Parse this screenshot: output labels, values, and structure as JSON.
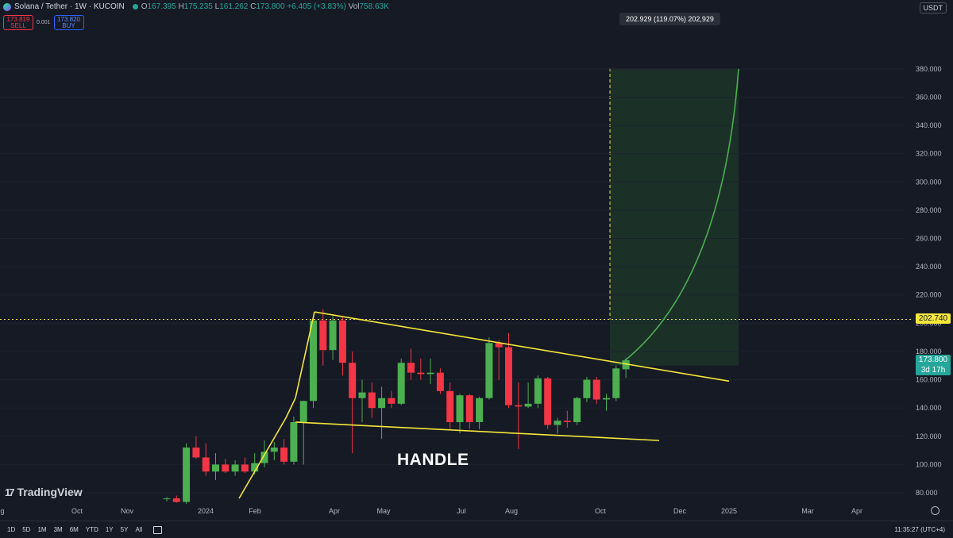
{
  "header": {
    "symbol": "Solana / Tether · 1W · KUCOIN",
    "open_label": "O",
    "open": "167.395",
    "high_label": "H",
    "high": "175.235",
    "low_label": "L",
    "low": "161.262",
    "close_label": "C",
    "close": "173.800",
    "change": "+6.405 (+3.83%)",
    "vol_label": "Vol",
    "volume": "758.63K"
  },
  "trade": {
    "sell_price": "173.819",
    "sell_label": "SELL",
    "spread": "0.001",
    "buy_price": "173.820",
    "buy_label": "BUY"
  },
  "currency": "USDT",
  "measure_label": "202.929 (119.07%) 202,929",
  "annotation_text": "HANDLE",
  "logo_text": "TradingView",
  "price_tags": {
    "level": "202.740",
    "last_price": "173.800",
    "countdown": "3d 17h"
  },
  "bottom_bar": {
    "ranges": [
      "1D",
      "5D",
      "1M",
      "3M",
      "6M",
      "YTD",
      "1Y",
      "5Y",
      "All"
    ],
    "clock": "11:35:27 (UTC+4)"
  },
  "colors": {
    "background": "#161a25",
    "up": "#4caf50",
    "down": "#f23645",
    "trendline": "#f5e63a",
    "projection": "#4caf50",
    "target_zone": "#1e3a2a"
  },
  "chart_data": {
    "type": "candlestick",
    "x_axis": {
      "labels": [
        "g",
        "Oct",
        "Nov",
        "2024",
        "Feb",
        "Apr",
        "May",
        "Jul",
        "Aug",
        "Oct",
        "Dec",
        "2025",
        "Mar",
        "Apr"
      ]
    },
    "y_axis": {
      "ticks": [
        80,
        100,
        120,
        140,
        160,
        180,
        200,
        220,
        240,
        260,
        280,
        300,
        320,
        340,
        360,
        380
      ],
      "tick_labels": [
        "80.000",
        "100.000",
        "120.000",
        "140.000",
        "160.000",
        "180.000",
        "200.000",
        "220.000",
        "240.000",
        "260.000",
        "280.000",
        "300.000",
        "320.000",
        "340.000",
        "360.000",
        "380.000"
      ],
      "range": [
        72,
        392
      ],
      "position": "right"
    },
    "candles": [
      {
        "o": 75.5,
        "h": 77,
        "l": 74,
        "c": 76
      },
      {
        "o": 76,
        "h": 78,
        "l": 73,
        "c": 73.5
      },
      {
        "o": 73.5,
        "h": 115,
        "l": 72,
        "c": 112
      },
      {
        "o": 112,
        "h": 120,
        "l": 104,
        "c": 105
      },
      {
        "o": 105,
        "h": 115,
        "l": 92,
        "c": 95
      },
      {
        "o": 95,
        "h": 108,
        "l": 89,
        "c": 100
      },
      {
        "o": 100,
        "h": 104,
        "l": 94,
        "c": 95
      },
      {
        "o": 95,
        "h": 103,
        "l": 92,
        "c": 100
      },
      {
        "o": 100,
        "h": 105,
        "l": 94,
        "c": 95
      },
      {
        "o": 95,
        "h": 108,
        "l": 93,
        "c": 101
      },
      {
        "o": 101,
        "h": 117,
        "l": 98,
        "c": 109
      },
      {
        "o": 109,
        "h": 116,
        "l": 103,
        "c": 112
      },
      {
        "o": 112,
        "h": 118,
        "l": 100,
        "c": 102
      },
      {
        "o": 102,
        "h": 134,
        "l": 100,
        "c": 130
      },
      {
        "o": 130,
        "h": 145,
        "l": 100,
        "c": 145
      },
      {
        "o": 145,
        "h": 205,
        "l": 140,
        "c": 202
      },
      {
        "o": 202,
        "h": 210,
        "l": 170,
        "c": 181
      },
      {
        "o": 181,
        "h": 205,
        "l": 174,
        "c": 202
      },
      {
        "o": 202,
        "h": 204,
        "l": 163,
        "c": 172
      },
      {
        "o": 172,
        "h": 180,
        "l": 108,
        "c": 147
      },
      {
        "o": 147,
        "h": 160,
        "l": 130,
        "c": 151
      },
      {
        "o": 151,
        "h": 158,
        "l": 133,
        "c": 140
      },
      {
        "o": 140,
        "h": 155,
        "l": 118,
        "c": 147
      },
      {
        "o": 147,
        "h": 152,
        "l": 140,
        "c": 143
      },
      {
        "o": 143,
        "h": 175,
        "l": 142,
        "c": 172
      },
      {
        "o": 172,
        "h": 182,
        "l": 160,
        "c": 165
      },
      {
        "o": 165,
        "h": 175,
        "l": 160,
        "c": 164
      },
      {
        "o": 164,
        "h": 175,
        "l": 157,
        "c": 165
      },
      {
        "o": 165,
        "h": 168,
        "l": 150,
        "c": 152
      },
      {
        "o": 152,
        "h": 158,
        "l": 125,
        "c": 130
      },
      {
        "o": 130,
        "h": 150,
        "l": 122,
        "c": 149
      },
      {
        "o": 149,
        "h": 150,
        "l": 125,
        "c": 130
      },
      {
        "o": 130,
        "h": 148,
        "l": 125,
        "c": 147
      },
      {
        "o": 147,
        "h": 190,
        "l": 146,
        "c": 186
      },
      {
        "o": 186,
        "h": 188,
        "l": 160,
        "c": 183
      },
      {
        "o": 183,
        "h": 193,
        "l": 140,
        "c": 142
      },
      {
        "o": 142,
        "h": 158,
        "l": 111,
        "c": 141
      },
      {
        "o": 141,
        "h": 158,
        "l": 140,
        "c": 143
      },
      {
        "o": 143,
        "h": 163,
        "l": 140,
        "c": 161
      },
      {
        "o": 161,
        "h": 162,
        "l": 125,
        "c": 128
      },
      {
        "o": 128,
        "h": 133,
        "l": 122,
        "c": 131
      },
      {
        "o": 131,
        "h": 138,
        "l": 126,
        "c": 130
      },
      {
        "o": 130,
        "h": 148,
        "l": 128,
        "c": 147
      },
      {
        "o": 147,
        "h": 162,
        "l": 144,
        "c": 160
      },
      {
        "o": 160,
        "h": 162,
        "l": 143,
        "c": 146
      },
      {
        "o": 146,
        "h": 150,
        "l": 138,
        "c": 147
      },
      {
        "o": 147,
        "h": 170,
        "l": 145,
        "c": 168
      },
      {
        "o": 167.395,
        "h": 175.235,
        "l": 161.262,
        "c": 173.8
      }
    ],
    "horizontal_level": 202.74,
    "last_price": 173.8,
    "annotation": "HANDLE"
  }
}
